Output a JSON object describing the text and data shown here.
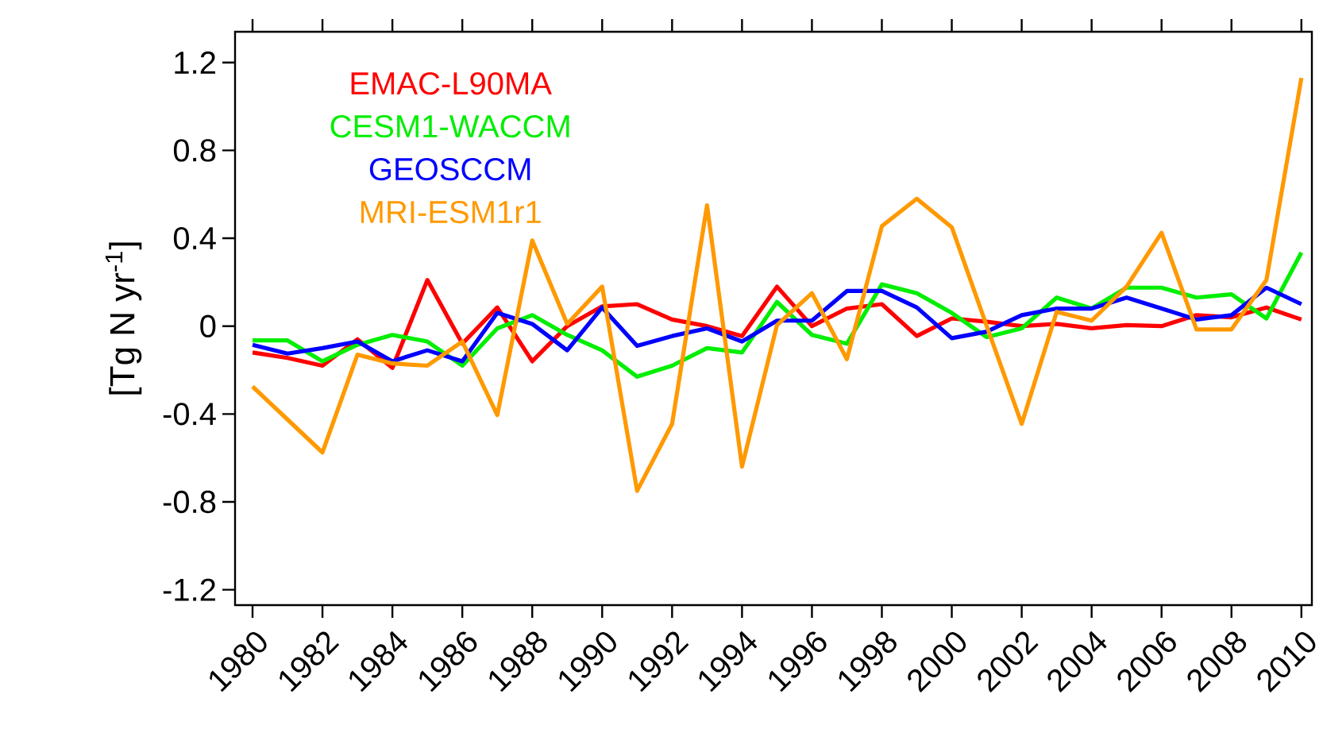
{
  "chart_data": {
    "type": "line",
    "ylabel": "[Tg N yr$^{-1}$]",
    "x": [
      1980,
      1981,
      1982,
      1983,
      1984,
      1985,
      1986,
      1987,
      1988,
      1989,
      1990,
      1991,
      1992,
      1993,
      1994,
      1995,
      1996,
      1997,
      1998,
      1999,
      2000,
      2001,
      2002,
      2003,
      2004,
      2005,
      2006,
      2007,
      2008,
      2009,
      2010
    ],
    "series": [
      {
        "name": "EMAC-L90MA",
        "color": "#ff0000",
        "values": [
          -0.12,
          -0.145,
          -0.18,
          -0.06,
          -0.19,
          0.21,
          -0.08,
          0.085,
          -0.16,
          0.0,
          0.09,
          0.1,
          0.03,
          0.0,
          -0.045,
          0.18,
          0.0,
          0.08,
          0.1,
          -0.045,
          0.035,
          0.02,
          0.0,
          0.01,
          -0.01,
          0.005,
          0.0,
          0.05,
          0.04,
          0.085,
          0.03
        ]
      },
      {
        "name": "CESM1-WACCM",
        "color": "#00ee00",
        "values": [
          -0.065,
          -0.065,
          -0.16,
          -0.085,
          -0.04,
          -0.07,
          -0.18,
          -0.01,
          0.05,
          -0.04,
          -0.11,
          -0.23,
          -0.18,
          -0.1,
          -0.12,
          0.11,
          -0.04,
          -0.08,
          0.19,
          0.15,
          0.06,
          -0.05,
          -0.01,
          0.13,
          0.08,
          0.175,
          0.175,
          0.13,
          0.145,
          0.035,
          0.335
        ]
      },
      {
        "name": "GEOSCCM",
        "color": "#0000ff",
        "values": [
          -0.085,
          -0.125,
          -0.1,
          -0.07,
          -0.16,
          -0.11,
          -0.16,
          0.06,
          0.01,
          -0.11,
          0.085,
          -0.09,
          -0.045,
          -0.01,
          -0.07,
          0.025,
          0.025,
          0.16,
          0.16,
          0.085,
          -0.055,
          -0.025,
          0.05,
          0.08,
          0.08,
          0.13,
          0.08,
          0.03,
          0.05,
          0.175,
          0.1
        ]
      },
      {
        "name": "MRI-ESM1r1",
        "color": "#ff9900",
        "values": [
          -0.275,
          -0.425,
          -0.575,
          -0.13,
          -0.17,
          -0.18,
          -0.07,
          -0.405,
          0.39,
          0.01,
          0.18,
          -0.75,
          -0.445,
          0.55,
          -0.64,
          0.005,
          0.15,
          -0.15,
          0.455,
          0.58,
          0.45,
          0.0,
          -0.445,
          0.065,
          0.025,
          0.18,
          0.425,
          -0.015,
          -0.015,
          0.21,
          1.13
        ]
      }
    ],
    "xlim": [
      1979.5,
      2010.3
    ],
    "ylim": [
      -1.27,
      1.34
    ],
    "xticks": [
      1980,
      1982,
      1984,
      1986,
      1988,
      1990,
      1992,
      1994,
      1996,
      1998,
      2000,
      2002,
      2004,
      2006,
      2008,
      2010
    ],
    "yticks": [
      -1.2,
      -0.8,
      -0.4,
      0,
      0.4,
      0.8,
      1.2
    ],
    "legend": "top left",
    "grid": false,
    "marker": "none",
    "line_style": "solid"
  }
}
